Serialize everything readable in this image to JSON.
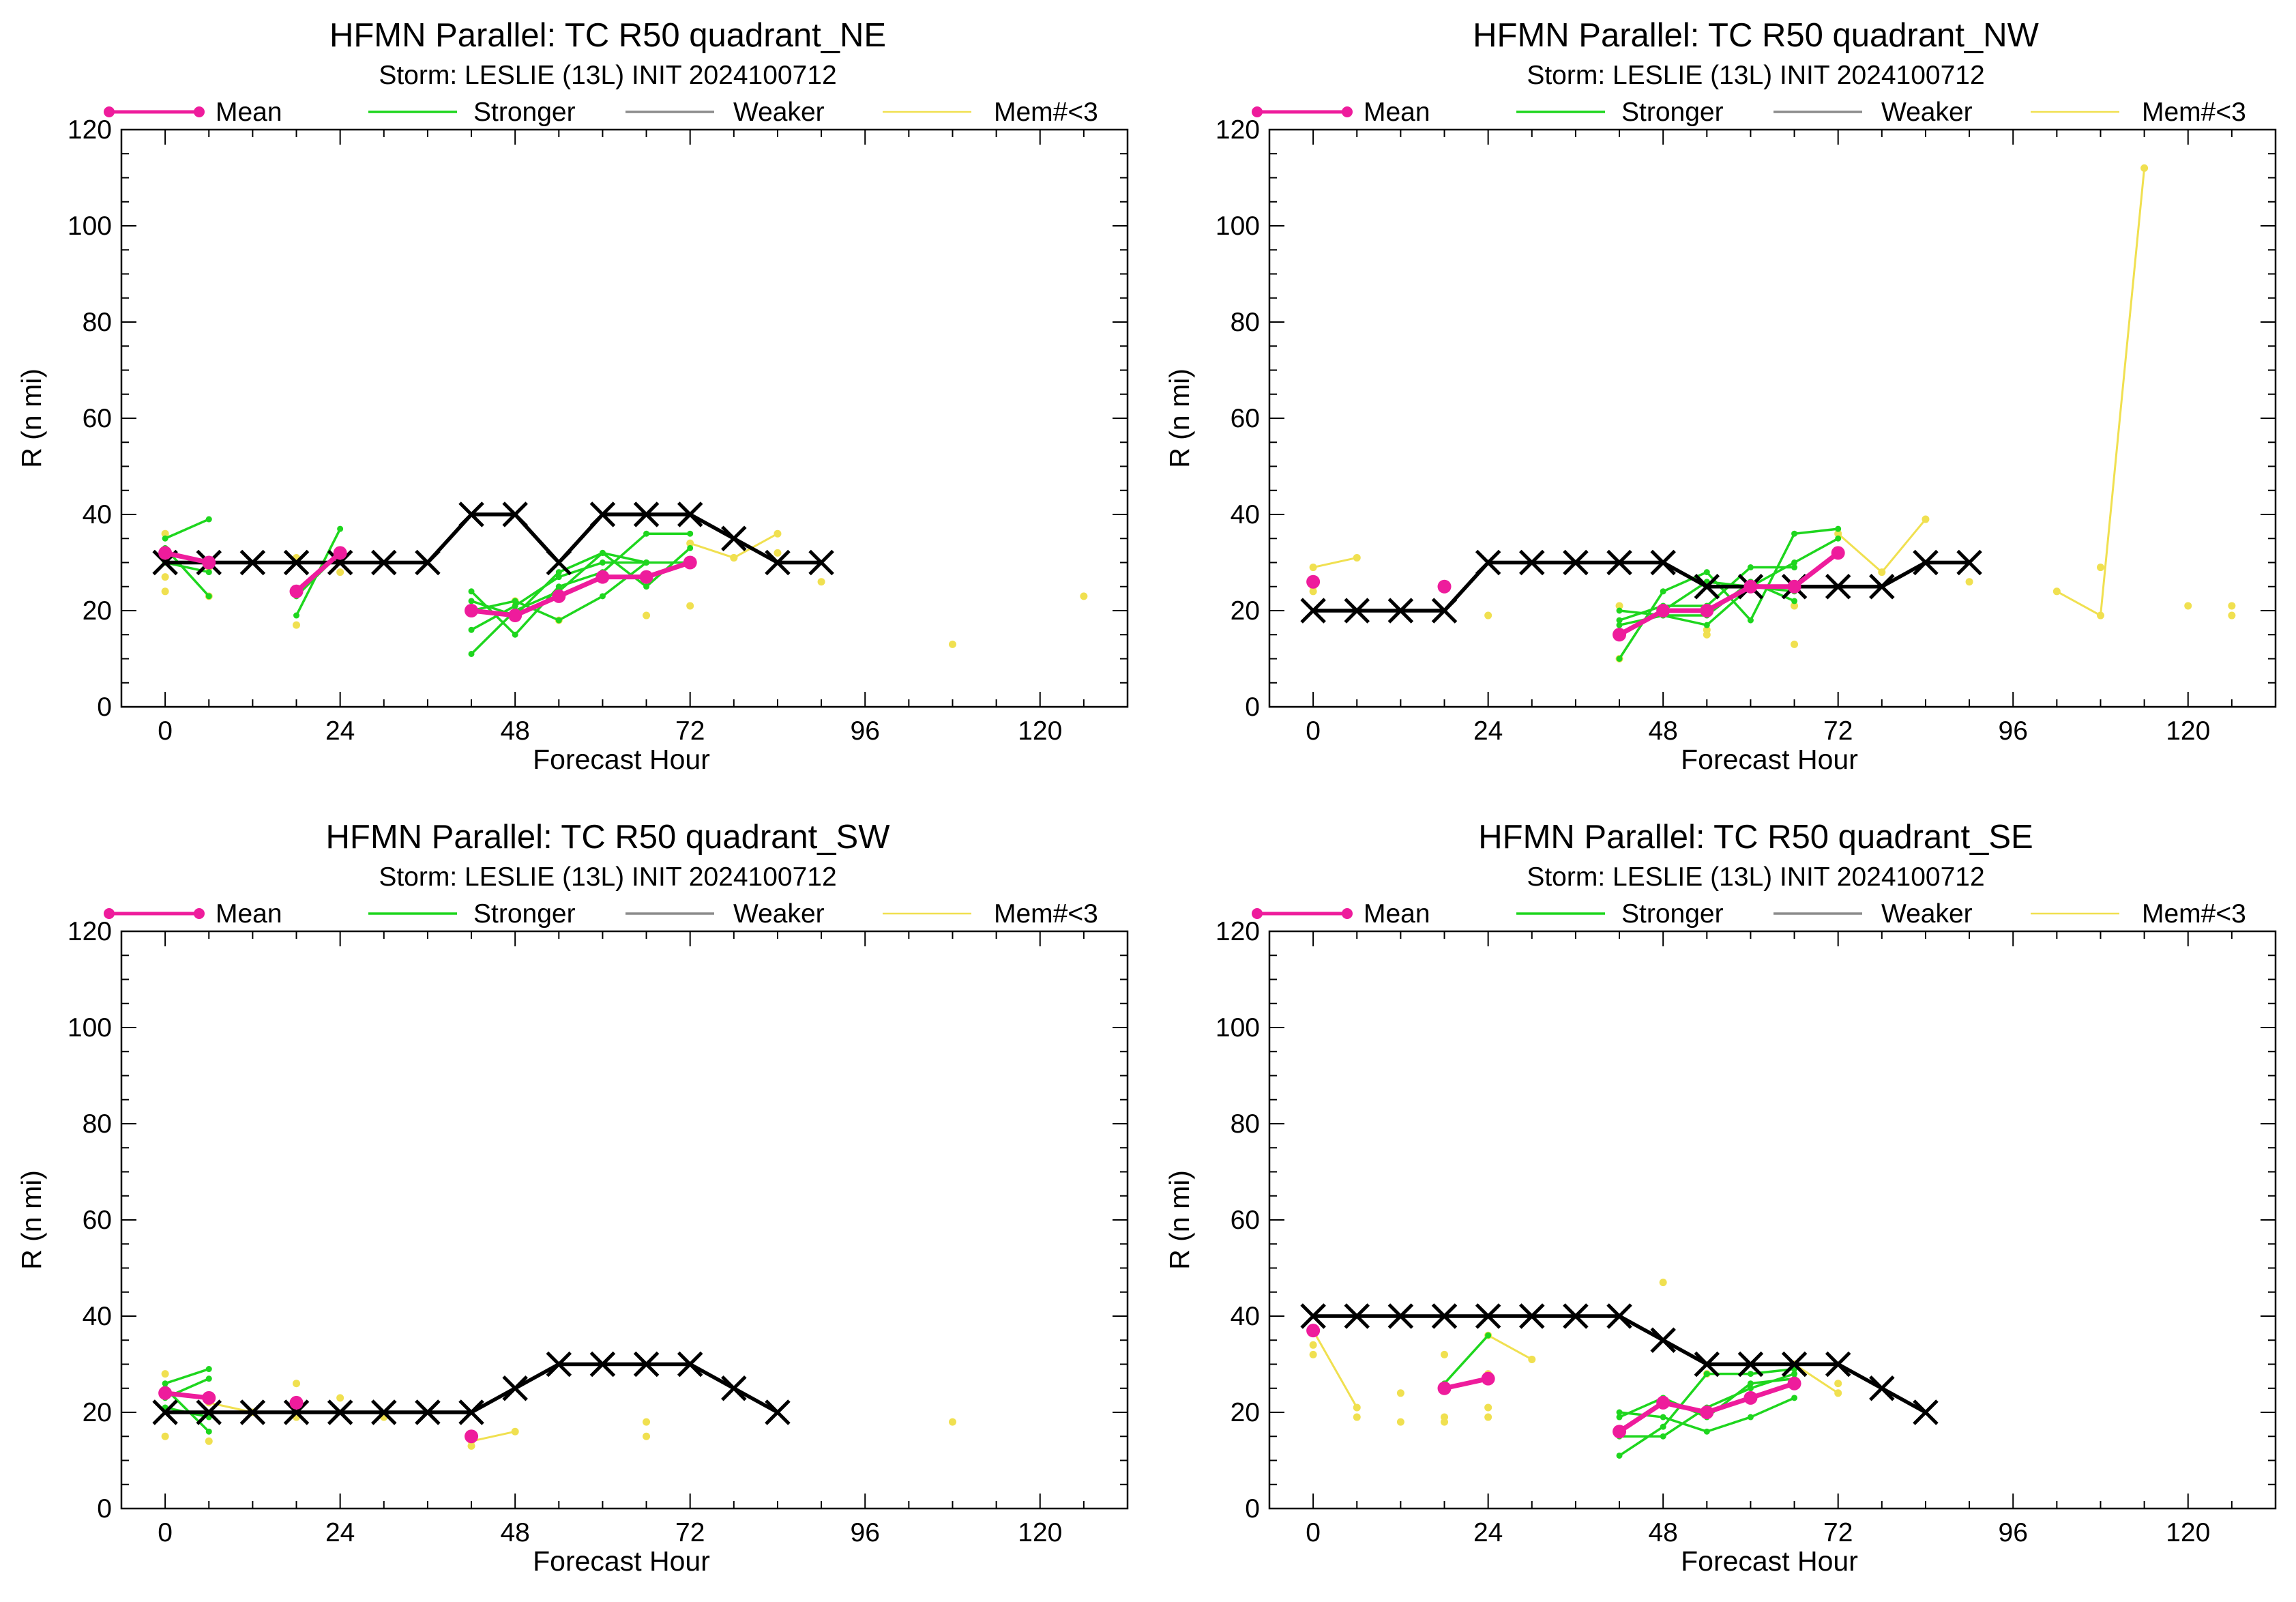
{
  "legend": {
    "mean_label": "Mean",
    "stronger_label": "Stronger",
    "weaker_label": "Weaker",
    "mem_label": "Mem#<3"
  },
  "colors": {
    "mean": "#ee1c9c",
    "stronger": "#1ed61e",
    "weaker": "#8c8c8c",
    "mem": "#f0e050",
    "best_track": "#000000"
  },
  "chart_data": [
    {
      "type": "line",
      "title": "HFMN Parallel: TC  R50 quadrant_NE",
      "subtitle": "Storm: LESLIE (13L) INIT 2024100712",
      "xlabel": "Forecast Hour",
      "ylabel": "R (n mi)",
      "xlim": [
        -6,
        132
      ],
      "ylim": [
        0,
        120
      ],
      "xticks": [
        0,
        24,
        48,
        72,
        96,
        120
      ],
      "yticks": [
        0,
        20,
        40,
        60,
        80,
        100,
        120
      ],
      "best_track": {
        "x": [
          0,
          6,
          12,
          18,
          24,
          30,
          36,
          42,
          48,
          54,
          60,
          66,
          72,
          78,
          84,
          90
        ],
        "y": [
          30,
          30,
          30,
          30,
          30,
          30,
          30,
          40,
          40,
          30,
          40,
          40,
          40,
          35,
          30,
          30
        ]
      },
      "mean": [
        {
          "x": [
            0,
            6
          ],
          "y": [
            32,
            30
          ]
        },
        {
          "x": [
            18,
            24
          ],
          "y": [
            24,
            32
          ]
        },
        {
          "x": [
            42,
            48,
            54,
            60,
            66,
            72
          ],
          "y": [
            20,
            19,
            23,
            27,
            27,
            30
          ]
        }
      ],
      "stronger": [
        {
          "x": [
            0,
            6
          ],
          "y": [
            35,
            39
          ]
        },
        {
          "x": [
            0,
            6
          ],
          "y": [
            33,
            23
          ]
        },
        {
          "x": [
            0,
            6
          ],
          "y": [
            30,
            28
          ]
        },
        {
          "x": [
            18,
            24
          ],
          "y": [
            19,
            37
          ]
        },
        {
          "x": [
            18,
            24
          ],
          "y": [
            23,
            32
          ]
        },
        {
          "x": [
            42,
            48,
            54,
            60,
            66
          ],
          "y": [
            11,
            20,
            24,
            32,
            30
          ]
        },
        {
          "x": [
            42,
            48,
            54,
            60,
            66,
            72
          ],
          "y": [
            24,
            15,
            25,
            28,
            36,
            36
          ]
        },
        {
          "x": [
            42,
            48,
            54,
            60,
            66,
            72
          ],
          "y": [
            20,
            22,
            18,
            23,
            30,
            30
          ]
        },
        {
          "x": [
            42,
            48,
            54,
            60,
            66
          ],
          "y": [
            16,
            21,
            27,
            30,
            30
          ]
        },
        {
          "x": [
            42,
            48,
            54,
            60,
            66,
            72
          ],
          "y": [
            22,
            19,
            28,
            32,
            25,
            33
          ]
        }
      ],
      "mem_lines": [
        {
          "x": [
            72,
            78,
            84
          ],
          "y": [
            34,
            31,
            36
          ]
        }
      ],
      "mem_points": {
        "x": [
          0,
          0,
          0,
          6,
          6,
          18,
          18,
          24,
          48,
          54,
          66,
          72,
          78,
          84,
          90,
          108,
          126
        ],
        "y": [
          24,
          27,
          36,
          23,
          29,
          17,
          31,
          28,
          22,
          18,
          19,
          21,
          31,
          32,
          26,
          13,
          23
        ]
      }
    },
    {
      "type": "line",
      "title": "HFMN Parallel: TC  R50 quadrant_NW",
      "subtitle": "Storm: LESLIE (13L) INIT 2024100712",
      "xlabel": "Forecast Hour",
      "ylabel": "R (n mi)",
      "xlim": [
        -6,
        132
      ],
      "ylim": [
        0,
        120
      ],
      "xticks": [
        0,
        24,
        48,
        72,
        96,
        120
      ],
      "yticks": [
        0,
        20,
        40,
        60,
        80,
        100,
        120
      ],
      "best_track": {
        "x": [
          0,
          6,
          12,
          18,
          24,
          30,
          36,
          42,
          48,
          54,
          60,
          66,
          72,
          78,
          84,
          90
        ],
        "y": [
          20,
          20,
          20,
          20,
          30,
          30,
          30,
          30,
          30,
          25,
          25,
          25,
          25,
          25,
          30,
          30
        ]
      },
      "mean": [
        {
          "x": [
            0
          ],
          "y": [
            26
          ]
        },
        {
          "x": [
            18
          ],
          "y": [
            25
          ]
        },
        {
          "x": [
            42,
            48,
            54,
            60,
            66,
            72
          ],
          "y": [
            15,
            20,
            20,
            25,
            25,
            32
          ]
        }
      ],
      "stronger": [
        {
          "x": [
            42,
            48,
            54,
            60,
            66,
            72
          ],
          "y": [
            10,
            24,
            28,
            18,
            36,
            37
          ]
        },
        {
          "x": [
            42,
            48,
            54,
            60,
            66
          ],
          "y": [
            18,
            21,
            21,
            29,
            29
          ]
        },
        {
          "x": [
            42,
            48,
            54,
            60,
            66
          ],
          "y": [
            17,
            19,
            19,
            26,
            22
          ]
        },
        {
          "x": [
            42,
            48,
            54,
            60,
            66
          ],
          "y": [
            20,
            19,
            17,
            25,
            24
          ]
        },
        {
          "x": [
            48,
            54,
            60,
            66,
            72
          ],
          "y": [
            20,
            26,
            25,
            30,
            35
          ]
        }
      ],
      "mem_lines": [
        {
          "x": [
            0,
            6
          ],
          "y": [
            29,
            31
          ]
        },
        {
          "x": [
            72,
            78,
            84
          ],
          "y": [
            36,
            28,
            39
          ]
        },
        {
          "x": [
            102,
            108,
            114
          ],
          "y": [
            24,
            19,
            112
          ]
        }
      ],
      "mem_points": {
        "x": [
          0,
          0,
          24,
          42,
          42,
          54,
          54,
          66,
          66,
          90,
          108,
          120,
          126,
          126
        ],
        "y": [
          24,
          25,
          19,
          10,
          21,
          15,
          16,
          13,
          21,
          26,
          29,
          21,
          19,
          21
        ]
      }
    },
    {
      "type": "line",
      "title": "HFMN Parallel: TC  R50 quadrant_SW",
      "subtitle": "Storm: LESLIE (13L) INIT 2024100712",
      "xlabel": "Forecast Hour",
      "ylabel": "R (n mi)",
      "xlim": [
        -6,
        132
      ],
      "ylim": [
        0,
        120
      ],
      "xticks": [
        0,
        24,
        48,
        72,
        96,
        120
      ],
      "yticks": [
        0,
        20,
        40,
        60,
        80,
        100,
        120
      ],
      "best_track": {
        "x": [
          0,
          6,
          12,
          18,
          24,
          30,
          36,
          42,
          48,
          54,
          60,
          66,
          72,
          78,
          84
        ],
        "y": [
          20,
          20,
          20,
          20,
          20,
          20,
          20,
          20,
          25,
          30,
          30,
          30,
          30,
          25,
          20
        ]
      },
      "mean": [
        {
          "x": [
            0,
            6
          ],
          "y": [
            24,
            23
          ]
        },
        {
          "x": [
            18
          ],
          "y": [
            22
          ]
        },
        {
          "x": [
            42
          ],
          "y": [
            15
          ]
        }
      ],
      "stronger": [
        {
          "x": [
            0,
            6
          ],
          "y": [
            25,
            16
          ]
        },
        {
          "x": [
            0,
            6
          ],
          "y": [
            26,
            29
          ]
        },
        {
          "x": [
            0,
            6
          ],
          "y": [
            23,
            27
          ]
        },
        {
          "x": [
            0,
            6
          ],
          "y": [
            21,
            19
          ]
        }
      ],
      "mem_lines": [
        {
          "x": [
            6,
            12
          ],
          "y": [
            22,
            20
          ]
        },
        {
          "x": [
            42,
            48
          ],
          "y": [
            14,
            16
          ]
        }
      ],
      "mem_points": {
        "x": [
          0,
          0,
          6,
          12,
          18,
          18,
          24,
          30,
          42,
          66,
          66,
          108
        ],
        "y": [
          15,
          28,
          14,
          20,
          26,
          19,
          23,
          19,
          13,
          15,
          18,
          18
        ]
      }
    },
    {
      "type": "line",
      "title": "HFMN Parallel: TC  R50 quadrant_SE",
      "subtitle": "Storm: LESLIE (13L) INIT 2024100712",
      "xlabel": "Forecast Hour",
      "ylabel": "R (n mi)",
      "xlim": [
        -6,
        132
      ],
      "ylim": [
        0,
        120
      ],
      "xticks": [
        0,
        24,
        48,
        72,
        96,
        120
      ],
      "yticks": [
        0,
        20,
        40,
        60,
        80,
        100,
        120
      ],
      "best_track": {
        "x": [
          0,
          6,
          12,
          18,
          24,
          30,
          36,
          42,
          48,
          54,
          60,
          66,
          72,
          78,
          84
        ],
        "y": [
          40,
          40,
          40,
          40,
          40,
          40,
          40,
          40,
          35,
          30,
          30,
          30,
          30,
          25,
          20
        ]
      },
      "mean": [
        {
          "x": [
            0
          ],
          "y": [
            37
          ]
        },
        {
          "x": [
            18,
            24
          ],
          "y": [
            25,
            27
          ]
        },
        {
          "x": [
            42,
            48,
            54,
            60,
            66
          ],
          "y": [
            16,
            22,
            20,
            23,
            26
          ]
        }
      ],
      "stronger": [
        {
          "x": [
            18,
            24
          ],
          "y": [
            26,
            36
          ]
        },
        {
          "x": [
            42,
            48,
            54,
            60,
            66
          ],
          "y": [
            11,
            17,
            28,
            28,
            29
          ]
        },
        {
          "x": [
            42,
            48,
            54,
            60,
            66
          ],
          "y": [
            15,
            15,
            21,
            25,
            28
          ]
        },
        {
          "x": [
            42,
            48,
            54,
            60,
            66
          ],
          "y": [
            20,
            19,
            16,
            19,
            23
          ]
        },
        {
          "x": [
            42,
            48,
            54,
            60,
            66
          ],
          "y": [
            19,
            23,
            19,
            26,
            27
          ]
        }
      ],
      "mem_lines": [
        {
          "x": [
            0,
            6
          ],
          "y": [
            37,
            21
          ]
        },
        {
          "x": [
            24,
            30
          ],
          "y": [
            36,
            31
          ]
        },
        {
          "x": [
            66,
            72
          ],
          "y": [
            30,
            24
          ]
        }
      ],
      "mem_points": {
        "x": [
          0,
          0,
          6,
          12,
          12,
          18,
          18,
          18,
          24,
          24,
          24,
          48,
          54,
          72
        ],
        "y": [
          32,
          34,
          19,
          18,
          24,
          18,
          19,
          32,
          19,
          21,
          28,
          47,
          28,
          26
        ]
      }
    }
  ]
}
